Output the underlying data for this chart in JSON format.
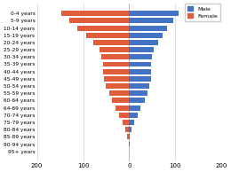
{
  "age_groups": [
    "0-4 years",
    "5-9 years",
    "10-14 years",
    "15-19 years",
    "20-24 years",
    "25-29 years",
    "30-34 years",
    "35-39 years",
    "40-44 years",
    "45-49 years",
    "50-54 years",
    "55-59 years",
    "60-64 years",
    "64-69 years",
    "70-74 years",
    "75-79 years",
    "80-84 years",
    "85-89 years",
    "90-94 years",
    "95+ years"
  ],
  "male": [
    107,
    96,
    83,
    72,
    62,
    53,
    50,
    48,
    48,
    47,
    44,
    39,
    33,
    25,
    19,
    11,
    6,
    2,
    0.8,
    0.2
  ],
  "female": [
    -148,
    -130,
    -112,
    -93,
    -78,
    -65,
    -60,
    -57,
    -56,
    -55,
    -50,
    -44,
    -38,
    -29,
    -22,
    -14,
    -9,
    -4,
    -1.5,
    -0.4
  ],
  "male_color": "#4472c4",
  "female_color": "#e05c3a",
  "background_color": "#ffffff",
  "xlim": [
    -200,
    200
  ],
  "xticks": [
    -200,
    -100,
    0,
    100,
    200
  ],
  "grid_color": "#d0d0d0",
  "bar_height": 0.72
}
